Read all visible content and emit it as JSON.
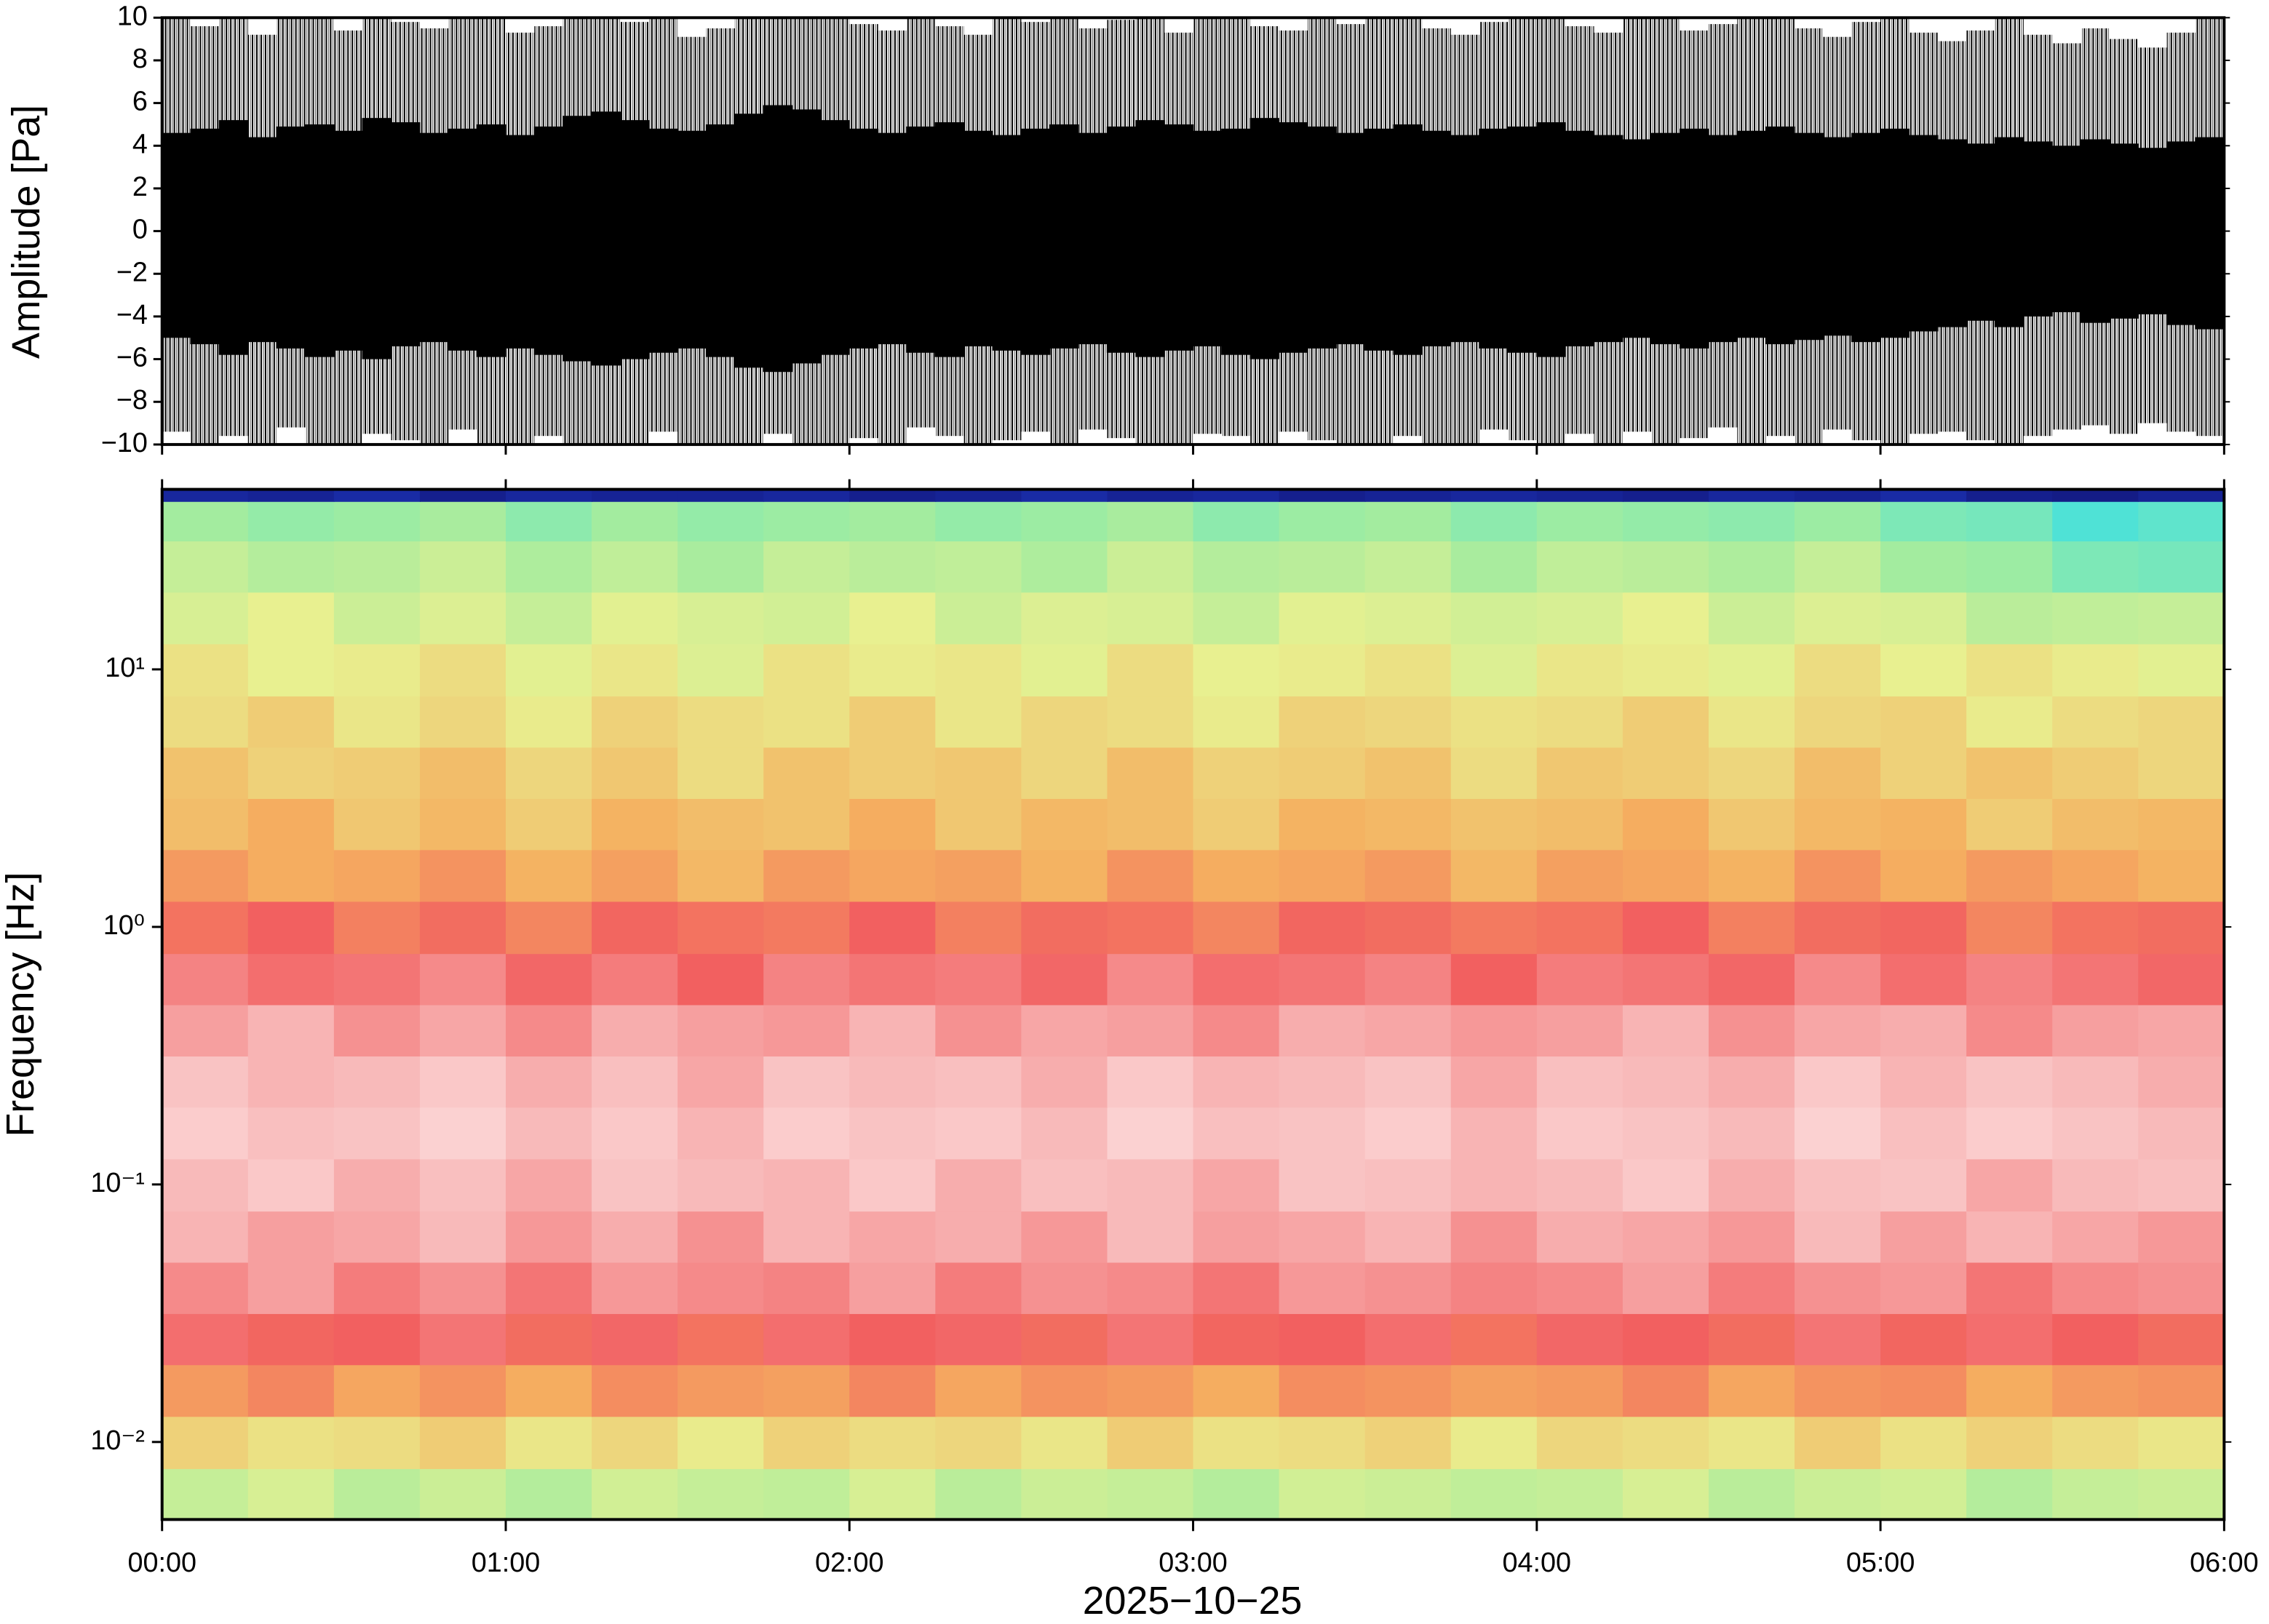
{
  "chart_data": [
    {
      "type": "waveform",
      "ylabel": "Amplitude [Pa]",
      "color": "#000000",
      "xlim": [
        0,
        360
      ],
      "xticks": [
        0,
        60,
        120,
        180,
        240,
        300,
        360
      ],
      "ylim": [
        -10,
        10
      ],
      "yticks": [
        {
          "value": -10,
          "label": "−10"
        },
        {
          "value": -8,
          "label": "−8"
        },
        {
          "value": -6,
          "label": "−6"
        },
        {
          "value": -4,
          "label": "−4"
        },
        {
          "value": -2,
          "label": "−2"
        },
        0,
        2,
        4,
        6,
        8,
        10
      ],
      "x": [
        0,
        5,
        10,
        15,
        20,
        25,
        30,
        35,
        40,
        45,
        50,
        55,
        60,
        65,
        70,
        75,
        80,
        85,
        90,
        95,
        100,
        105,
        110,
        115,
        120,
        125,
        130,
        135,
        140,
        145,
        150,
        155,
        160,
        165,
        170,
        175,
        180,
        185,
        190,
        195,
        200,
        205,
        210,
        215,
        220,
        225,
        230,
        235,
        240,
        245,
        250,
        255,
        260,
        265,
        270,
        275,
        280,
        285,
        290,
        295,
        300,
        305,
        310,
        315,
        320,
        325,
        330,
        335,
        340,
        345,
        350,
        355
      ],
      "max": [
        10,
        9.6,
        10,
        9.2,
        10,
        10,
        9.4,
        10,
        9.8,
        9.5,
        10,
        10,
        9.3,
        9.6,
        10,
        10,
        9.8,
        10,
        9.1,
        9.5,
        10,
        10,
        10,
        10,
        9.7,
        9.4,
        10,
        9.6,
        9.2,
        10,
        9.8,
        10,
        9.5,
        9.9,
        10,
        9.3,
        10,
        10,
        9.6,
        9.4,
        10,
        9.7,
        10,
        10,
        9.5,
        9.2,
        9.8,
        10,
        10,
        9.6,
        9.3,
        10,
        10,
        9.4,
        9.7,
        10,
        10,
        9.5,
        9.1,
        9.8,
        10,
        9.3,
        8.9,
        9.4,
        10,
        9.2,
        8.8,
        9.5,
        9.0,
        8.6,
        9.3,
        10
      ],
      "min": [
        -9.4,
        -10,
        -9.6,
        -10,
        -9.2,
        -10,
        -10,
        -9.5,
        -9.8,
        -10,
        -9.3,
        -10,
        -10,
        -9.6,
        -10,
        -10,
        -10,
        -9.4,
        -10,
        -10,
        -10,
        -9.5,
        -10,
        -10,
        -9.7,
        -10,
        -9.2,
        -9.6,
        -10,
        -9.8,
        -9.4,
        -10,
        -9.3,
        -9.7,
        -10,
        -10,
        -9.5,
        -9.6,
        -10,
        -9.4,
        -9.8,
        -10,
        -10,
        -9.6,
        -10,
        -10,
        -9.3,
        -9.8,
        -10,
        -9.5,
        -10,
        -9.4,
        -10,
        -9.7,
        -9.2,
        -10,
        -9.6,
        -10,
        -9.3,
        -9.8,
        -10,
        -9.5,
        -9.4,
        -9.8,
        -10,
        -9.6,
        -9.3,
        -9.1,
        -9.5,
        -9.0,
        -9.4,
        -9.6
      ],
      "core_max": [
        4.6,
        4.8,
        5.2,
        4.4,
        4.9,
        5.0,
        4.7,
        5.3,
        5.1,
        4.6,
        4.8,
        5.0,
        4.5,
        4.9,
        5.4,
        5.6,
        5.2,
        4.8,
        4.7,
        5.0,
        5.5,
        5.9,
        5.7,
        5.2,
        4.8,
        4.6,
        4.9,
        5.1,
        4.7,
        4.5,
        4.8,
        5.0,
        4.6,
        4.9,
        5.2,
        5.0,
        4.7,
        4.8,
        5.3,
        5.1,
        4.9,
        4.6,
        4.8,
        5.0,
        4.7,
        4.5,
        4.8,
        4.9,
        5.1,
        4.7,
        4.5,
        4.3,
        4.6,
        4.8,
        4.5,
        4.7,
        4.9,
        4.6,
        4.4,
        4.6,
        4.8,
        4.5,
        4.3,
        4.1,
        4.4,
        4.2,
        4.0,
        4.3,
        4.1,
        3.9,
        4.2,
        4.4
      ],
      "core_min": [
        -5.0,
        -5.3,
        -5.8,
        -5.2,
        -5.5,
        -5.9,
        -5.6,
        -6.0,
        -5.4,
        -5.2,
        -5.6,
        -5.9,
        -5.5,
        -5.8,
        -6.1,
        -6.3,
        -6.0,
        -5.7,
        -5.5,
        -5.9,
        -6.4,
        -6.6,
        -6.2,
        -5.8,
        -5.5,
        -5.3,
        -5.7,
        -5.9,
        -5.4,
        -5.6,
        -5.8,
        -5.5,
        -5.3,
        -5.7,
        -5.9,
        -5.6,
        -5.4,
        -5.8,
        -6.0,
        -5.7,
        -5.5,
        -5.3,
        -5.6,
        -5.8,
        -5.4,
        -5.2,
        -5.5,
        -5.7,
        -5.9,
        -5.4,
        -5.2,
        -5.0,
        -5.3,
        -5.5,
        -5.2,
        -5.0,
        -5.3,
        -5.1,
        -4.9,
        -5.2,
        -5.0,
        -4.7,
        -4.5,
        -4.2,
        -4.5,
        -4.0,
        -3.8,
        -4.3,
        -4.1,
        -3.9,
        -4.4,
        -4.6
      ]
    },
    {
      "type": "spectrogram",
      "ylabel": "Frequency [Hz]",
      "xlabel": "2025−10−25",
      "yscale": "log",
      "xlim": [
        0,
        360
      ],
      "xticks": [
        {
          "value": 0,
          "label": "00:00"
        },
        {
          "value": 60,
          "label": "01:00"
        },
        {
          "value": 120,
          "label": "02:00"
        },
        {
          "value": 180,
          "label": "03:00"
        },
        {
          "value": 240,
          "label": "04:00"
        },
        {
          "value": 300,
          "label": "05:00"
        },
        {
          "value": 360,
          "label": "06:00"
        }
      ],
      "ylim": [
        0.005,
        50
      ],
      "yticks": [
        {
          "value": 0.01,
          "label": "10⁻²"
        },
        {
          "value": 0.1,
          "label": "10⁻¹"
        },
        {
          "value": 1,
          "label": "10⁰"
        },
        {
          "value": 10,
          "label": "10¹"
        }
      ],
      "zlim": [
        0,
        100
      ],
      "colormap": [
        "#10106e",
        "#2040d0",
        "#40e0e0",
        "#a0eca0",
        "#e8f090",
        "#f5b060",
        "#f26060",
        "#f8b8b8",
        "#fff0f0"
      ],
      "xedges": [
        0,
        15,
        30,
        45,
        60,
        75,
        90,
        105,
        120,
        135,
        150,
        165,
        180,
        195,
        210,
        225,
        240,
        255,
        270,
        285,
        300,
        315,
        330,
        345,
        360
      ],
      "yedges": [
        0.005,
        0.0079,
        0.0126,
        0.02,
        0.0316,
        0.05,
        0.079,
        0.126,
        0.2,
        0.316,
        0.5,
        0.79,
        1.26,
        2,
        3.16,
        5,
        7.9,
        12.6,
        20,
        31.6,
        45,
        50
      ],
      "z": [
        [
          44,
          47,
          42,
          45,
          41,
          46,
          44,
          43,
          47,
          42,
          45,
          44,
          41,
          46,
          45,
          43,
          44,
          47,
          42,
          45,
          46,
          41,
          44,
          45
        ],
        [
          56,
          53,
          54,
          57,
          52,
          55,
          51,
          56,
          54,
          55,
          52,
          57,
          53,
          54,
          56,
          51,
          55,
          54,
          52,
          57,
          53,
          56,
          54,
          52
        ],
        [
          66,
          69,
          64,
          67,
          63,
          68,
          66,
          65,
          69,
          64,
          67,
          66,
          63,
          68,
          67,
          65,
          66,
          69,
          64,
          67,
          68,
          63,
          66,
          67
        ],
        [
          77,
          74,
          75,
          78,
          73,
          76,
          72,
          77,
          75,
          76,
          73,
          78,
          74,
          75,
          77,
          72,
          76,
          75,
          73,
          78,
          74,
          77,
          75,
          73
        ],
        [
          81,
          84,
          79,
          82,
          78,
          83,
          81,
          80,
          84,
          79,
          82,
          81,
          78,
          83,
          82,
          80,
          81,
          84,
          79,
          82,
          83,
          78,
          81,
          82
        ],
        [
          87,
          84,
          85,
          88,
          83,
          86,
          82,
          87,
          85,
          86,
          83,
          88,
          84,
          85,
          87,
          82,
          86,
          85,
          83,
          88,
          84,
          87,
          85,
          83
        ],
        [
          88,
          91,
          86,
          89,
          85,
          90,
          88,
          87,
          91,
          86,
          89,
          88,
          85,
          90,
          89,
          87,
          88,
          91,
          86,
          89,
          90,
          85,
          88,
          89
        ],
        [
          92,
          89,
          90,
          93,
          88,
          91,
          87,
          92,
          90,
          91,
          88,
          93,
          89,
          90,
          92,
          87,
          91,
          90,
          88,
          93,
          89,
          92,
          90,
          88
        ],
        [
          90,
          87,
          88,
          91,
          86,
          89,
          85,
          90,
          88,
          89,
          86,
          91,
          87,
          88,
          90,
          85,
          89,
          88,
          86,
          91,
          87,
          90,
          88,
          86
        ],
        [
          84,
          87,
          82,
          85,
          81,
          86,
          84,
          83,
          87,
          82,
          85,
          84,
          81,
          86,
          85,
          83,
          84,
          87,
          82,
          85,
          86,
          81,
          84,
          85
        ],
        [
          80,
          77,
          78,
          81,
          76,
          79,
          75,
          80,
          78,
          79,
          76,
          81,
          77,
          78,
          80,
          75,
          79,
          78,
          76,
          81,
          77,
          80,
          78,
          76
        ],
        [
          72,
          75,
          70,
          73,
          69,
          74,
          72,
          71,
          75,
          70,
          73,
          72,
          69,
          74,
          73,
          71,
          72,
          75,
          70,
          73,
          74,
          69,
          72,
          73
        ],
        [
          66,
          63,
          64,
          67,
          62,
          65,
          61,
          66,
          64,
          65,
          62,
          67,
          63,
          64,
          66,
          61,
          65,
          64,
          62,
          67,
          63,
          66,
          64,
          62
        ],
        [
          60,
          63,
          58,
          61,
          57,
          62,
          60,
          59,
          63,
          58,
          61,
          60,
          57,
          62,
          61,
          59,
          60,
          63,
          58,
          61,
          62,
          57,
          60,
          61
        ],
        [
          59,
          56,
          57,
          60,
          55,
          58,
          54,
          59,
          57,
          58,
          55,
          60,
          56,
          57,
          59,
          54,
          58,
          57,
          55,
          60,
          56,
          59,
          57,
          55
        ],
        [
          54,
          57,
          52,
          55,
          51,
          56,
          54,
          53,
          57,
          52,
          55,
          54,
          51,
          56,
          55,
          53,
          54,
          57,
          52,
          55,
          56,
          51,
          54,
          55
        ],
        [
          53,
          50,
          51,
          54,
          49,
          52,
          48,
          53,
          51,
          52,
          49,
          54,
          50,
          51,
          53,
          48,
          52,
          51,
          49,
          54,
          50,
          53,
          51,
          49
        ],
        [
          47,
          50,
          45,
          48,
          44,
          49,
          47,
          46,
          50,
          45,
          48,
          47,
          44,
          49,
          48,
          46,
          47,
          50,
          45,
          48,
          47,
          42,
          43,
          44
        ],
        [
          44,
          41,
          42,
          45,
          40,
          43,
          39,
          44,
          42,
          43,
          40,
          45,
          41,
          42,
          44,
          39,
          43,
          42,
          40,
          44,
          38,
          37,
          33,
          32
        ],
        [
          38,
          36,
          37,
          39,
          35,
          38,
          36,
          37,
          38,
          36,
          37,
          39,
          35,
          37,
          38,
          35,
          37,
          36,
          35,
          37,
          33,
          32,
          27,
          29
        ],
        [
          6,
          5,
          7,
          4,
          6,
          5,
          5,
          6,
          4,
          5,
          7,
          5,
          6,
          4,
          5,
          6,
          5,
          4,
          6,
          5,
          7,
          4,
          3,
          5
        ]
      ]
    }
  ]
}
